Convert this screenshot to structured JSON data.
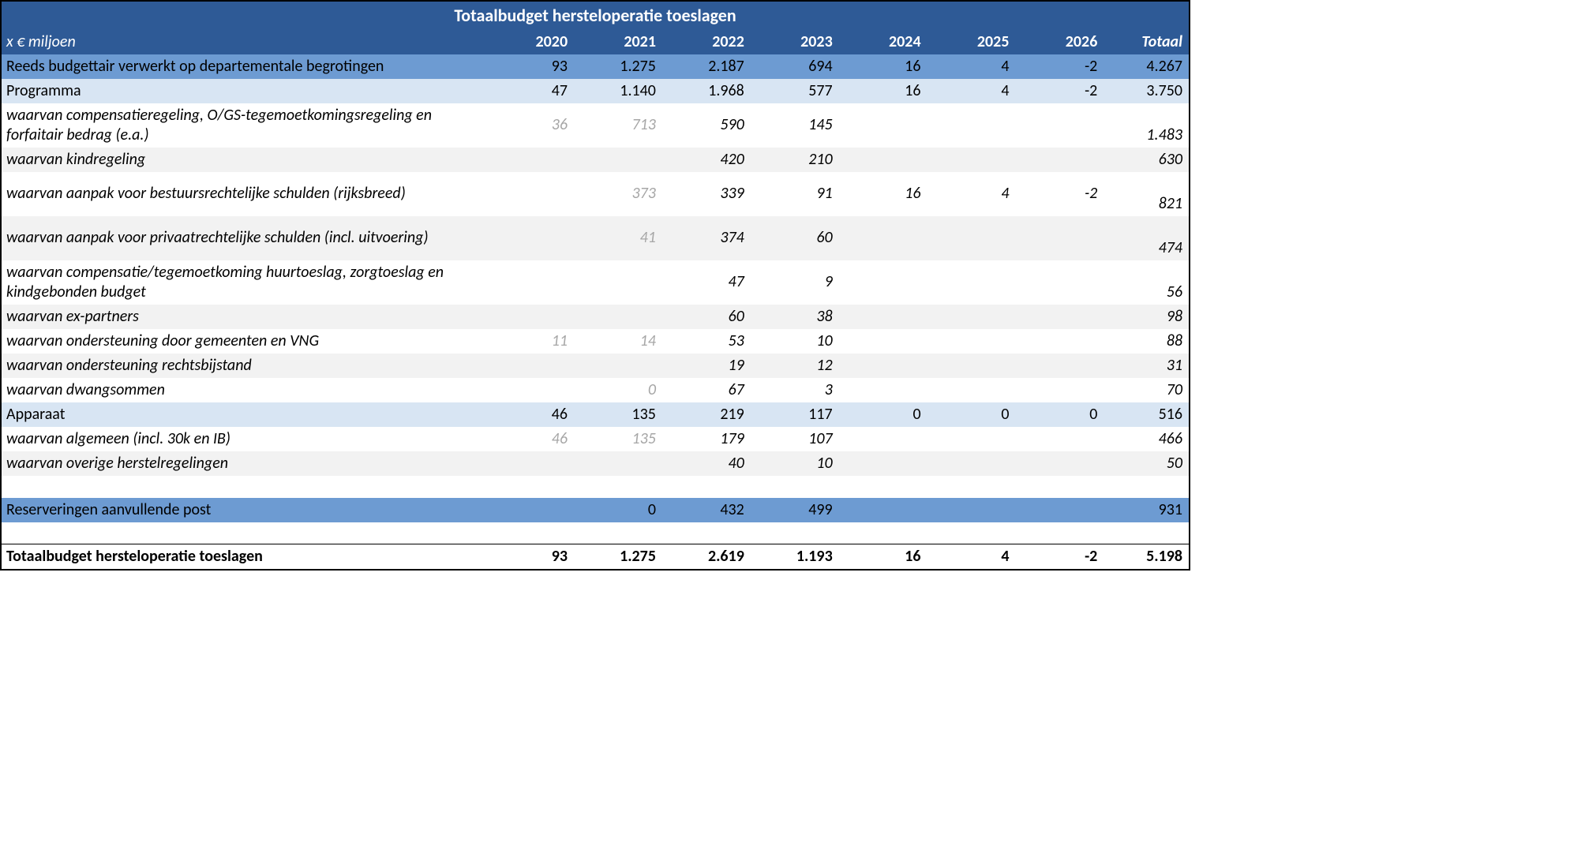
{
  "colors": {
    "header_bg": "#2e5a96",
    "header_fg": "#ffffff",
    "section_dark_bg": "#6d9bd2",
    "section_light_bg": "#d8e5f3",
    "stripe_bg": "#f2f2f2",
    "faded_text": "#a6a6a6",
    "border": "#000000"
  },
  "title": "Totaalbudget hersteloperatie toeslagen",
  "unit_label": "x € miljoen",
  "years": [
    "2020",
    "2021",
    "2022",
    "2023",
    "2024",
    "2025",
    "2026"
  ],
  "total_header": "Totaal",
  "rows": [
    {
      "id": "reeds",
      "kind": "section-dark",
      "label": "Reeds budgettair verwerkt op departementale begrotingen",
      "vals": [
        "93",
        "1.275",
        "2.187",
        "694",
        "16",
        "4",
        "-2"
      ],
      "total": "4.267"
    },
    {
      "id": "programma",
      "kind": "section-light",
      "label": "Programma",
      "vals": [
        "47",
        "1.140",
        "1.968",
        "577",
        "16",
        "4",
        "-2"
      ],
      "faded": [
        true,
        true,
        false,
        false,
        false,
        false,
        false
      ],
      "total": "3.750"
    },
    {
      "id": "compregeling",
      "kind": "sub",
      "multi": true,
      "stripe": false,
      "label": "waarvan compensatieregeling, O/GS-tegemoetkomingsregeling en forfaitair bedrag (e.a.)",
      "vals": [
        "36",
        "713",
        "590",
        "145",
        "",
        "",
        ""
      ],
      "faded": [
        true,
        true,
        false,
        false,
        false,
        false,
        false
      ],
      "total": "1.483"
    },
    {
      "id": "kindregeling",
      "kind": "sub",
      "stripe": true,
      "label": "waarvan kindregeling",
      "vals": [
        "",
        "",
        "420",
        "210",
        "",
        "",
        ""
      ],
      "total": "630"
    },
    {
      "id": "bestuursrecht",
      "kind": "sub",
      "multi": true,
      "stripe": false,
      "label": "waarvan aanpak voor bestuursrechtelijke schulden (rijksbreed)",
      "vals": [
        "",
        "373",
        "339",
        "91",
        "16",
        "4",
        "-2"
      ],
      "faded": [
        false,
        true,
        false,
        false,
        false,
        false,
        false
      ],
      "total": "821"
    },
    {
      "id": "privaatrecht",
      "kind": "sub",
      "multi": true,
      "stripe": true,
      "label": "waarvan aanpak voor privaatrechtelijke schulden (incl. uitvoering)",
      "vals": [
        "",
        "41",
        "374",
        "60",
        "",
        "",
        ""
      ],
      "faded": [
        false,
        true,
        false,
        false,
        false,
        false,
        false
      ],
      "total": "474"
    },
    {
      "id": "huurtoeslag",
      "kind": "sub",
      "multi": true,
      "stripe": false,
      "label": "waarvan compensatie/tegemoetkoming huurtoeslag, zorgtoeslag en kindgebonden budget",
      "vals": [
        "",
        "",
        "47",
        "9",
        "",
        "",
        ""
      ],
      "total": "56"
    },
    {
      "id": "expartners",
      "kind": "sub",
      "stripe": true,
      "label": "waarvan ex-partners",
      "vals": [
        "",
        "",
        "60",
        "38",
        "",
        "",
        ""
      ],
      "total": "98"
    },
    {
      "id": "gemeenten",
      "kind": "sub",
      "stripe": false,
      "label": "waarvan ondersteuning door gemeenten en VNG",
      "vals": [
        "11",
        "14",
        "53",
        "10",
        "",
        "",
        ""
      ],
      "faded": [
        true,
        true,
        false,
        false,
        false,
        false,
        false
      ],
      "total": "88"
    },
    {
      "id": "rechtsbijstand",
      "kind": "sub",
      "stripe": true,
      "label": "waarvan ondersteuning rechtsbijstand",
      "vals": [
        "",
        "",
        "19",
        "12",
        "",
        "",
        ""
      ],
      "total": "31"
    },
    {
      "id": "dwangsommen",
      "kind": "sub",
      "stripe": false,
      "label": "waarvan dwangsommen",
      "vals": [
        "",
        "0",
        "67",
        "3",
        "",
        "",
        ""
      ],
      "faded": [
        false,
        true,
        false,
        false,
        false,
        false,
        false
      ],
      "total": "70"
    },
    {
      "id": "apparaat",
      "kind": "section-light",
      "label": "Apparaat",
      "vals": [
        "46",
        "135",
        "219",
        "117",
        "0",
        "0",
        "0"
      ],
      "faded": [
        true,
        true,
        false,
        false,
        false,
        false,
        false
      ],
      "total": "516"
    },
    {
      "id": "algemeen",
      "kind": "sub",
      "stripe": false,
      "label": "waarvan algemeen (incl. 30k en IB)",
      "vals": [
        "46",
        "135",
        "179",
        "107",
        "",
        "",
        ""
      ],
      "faded": [
        true,
        true,
        false,
        false,
        false,
        false,
        false
      ],
      "total": "466"
    },
    {
      "id": "overige",
      "kind": "sub",
      "stripe": true,
      "label": "waarvan overige herstelregelingen",
      "vals": [
        "",
        "",
        "40",
        "10",
        "",
        "",
        ""
      ],
      "total": "50"
    },
    {
      "id": "spacer1",
      "kind": "spacer"
    },
    {
      "id": "reserveringen",
      "kind": "section-dark",
      "label": "Reserveringen aanvullende post",
      "vals": [
        "",
        "0",
        "432",
        "499",
        "",
        "",
        ""
      ],
      "total": "931"
    },
    {
      "id": "spacer2",
      "kind": "spacer"
    },
    {
      "id": "grand",
      "kind": "grand",
      "label": "Totaalbudget hersteloperatie toeslagen",
      "vals": [
        "93",
        "1.275",
        "2.619",
        "1.193",
        "16",
        "4",
        "-2"
      ],
      "total": "5.198"
    }
  ]
}
